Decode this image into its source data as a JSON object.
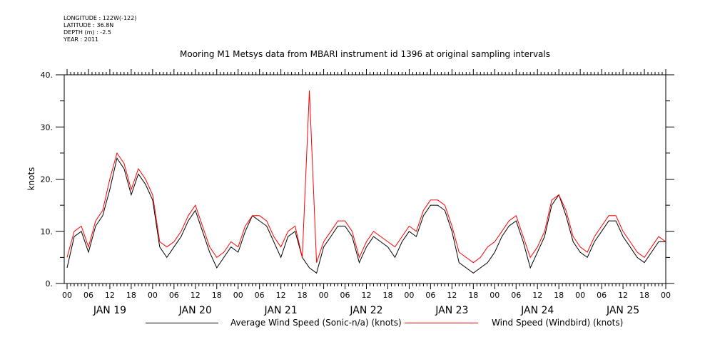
{
  "meta": {
    "lines": [
      "LONGITUDE : 122W(-122)",
      "LATITUDE : 36.8N",
      "DEPTH (m) : -2.5",
      "YEAR : 2011"
    ]
  },
  "chart_data": {
    "type": "line",
    "title": "Mooring M1 Metsys data from MBARI instrument id 1396 at original sampling intervals",
    "ylabel": "knots",
    "ylim": [
      0,
      40
    ],
    "yticks": [
      0,
      10,
      20,
      30,
      40
    ],
    "ytick_labels": [
      "0.",
      "10.",
      "20.",
      "30.",
      "40."
    ],
    "xlim_hours": [
      0,
      168
    ],
    "hour_tick_labels": [
      "00",
      "06",
      "12",
      "18",
      "00",
      "06",
      "12",
      "18",
      "00",
      "06",
      "12",
      "18",
      "00",
      "06",
      "12",
      "18",
      "00",
      "06",
      "12",
      "18",
      "00",
      "06",
      "12",
      "18",
      "00",
      "06",
      "12",
      "18",
      "00"
    ],
    "day_labels": [
      "JAN 19",
      "JAN 20",
      "JAN 21",
      "JAN 22",
      "JAN 23",
      "JAN 24",
      "JAN 25"
    ],
    "grid": false,
    "legend_placement": "bottom",
    "series": [
      {
        "name": "Average Wind Speed (Sonic-n/a) (knots)",
        "color": "#000000",
        "x": [
          0,
          2,
          4,
          6,
          8,
          10,
          12,
          14,
          16,
          18,
          20,
          22,
          24,
          26,
          28,
          30,
          32,
          34,
          36,
          38,
          40,
          42,
          44,
          46,
          48,
          50,
          52,
          54,
          56,
          58,
          60,
          62,
          64,
          66,
          68,
          70,
          72,
          74,
          76,
          78,
          80,
          82,
          84,
          86,
          88,
          90,
          92,
          94,
          96,
          98,
          100,
          102,
          104,
          106,
          108,
          110,
          112,
          114,
          116,
          118,
          120,
          122,
          124,
          126,
          128,
          130,
          132,
          134,
          136,
          138,
          140,
          142,
          144,
          146,
          148,
          150,
          152,
          154,
          156,
          158,
          160,
          162,
          164,
          166,
          168
        ],
        "y": [
          3,
          9,
          10,
          6,
          11,
          13,
          18,
          24,
          22,
          17,
          21,
          19,
          16,
          7,
          5,
          7,
          9,
          12,
          14,
          10,
          6,
          3,
          5,
          7,
          6,
          10,
          13,
          12,
          11,
          8,
          5,
          9,
          10,
          5,
          3,
          2,
          7,
          9,
          11,
          11,
          9,
          4,
          7,
          9,
          8,
          7,
          5,
          8,
          10,
          9,
          13,
          15,
          15,
          14,
          10,
          4,
          3,
          2,
          3,
          4,
          6,
          9,
          11,
          12,
          8,
          3,
          6,
          9,
          15,
          17,
          13,
          8,
          6,
          5,
          8,
          10,
          12,
          12,
          9,
          7,
          5,
          4,
          6,
          8,
          8
        ]
      },
      {
        "name": "Wind Speed (Windbird) (knots)",
        "color": "#ff0000",
        "x": [
          0,
          2,
          4,
          6,
          8,
          10,
          12,
          14,
          16,
          18,
          20,
          22,
          24,
          26,
          28,
          30,
          32,
          34,
          36,
          38,
          40,
          42,
          44,
          46,
          48,
          50,
          52,
          54,
          56,
          58,
          60,
          62,
          64,
          66,
          68,
          70,
          72,
          74,
          76,
          78,
          80,
          82,
          84,
          86,
          88,
          90,
          92,
          94,
          96,
          98,
          100,
          102,
          104,
          106,
          108,
          110,
          112,
          114,
          116,
          118,
          120,
          122,
          124,
          126,
          128,
          130,
          132,
          134,
          136,
          138,
          140,
          142,
          144,
          146,
          148,
          150,
          152,
          154,
          156,
          158,
          160,
          162,
          164,
          166,
          168
        ],
        "y": [
          5,
          10,
          11,
          7,
          12,
          14,
          20,
          25,
          23,
          18,
          22,
          20,
          17,
          8,
          7,
          8,
          10,
          13,
          15,
          11,
          7,
          5,
          6,
          8,
          7,
          11,
          13,
          13,
          12,
          9,
          7,
          10,
          11,
          5,
          37,
          4,
          8,
          10,
          12,
          12,
          10,
          5,
          8,
          10,
          9,
          8,
          7,
          9,
          11,
          10,
          14,
          16,
          16,
          15,
          11,
          6,
          5,
          4,
          5,
          7,
          8,
          10,
          12,
          13,
          9,
          5,
          7,
          10,
          16,
          17,
          14,
          9,
          7,
          6,
          9,
          11,
          13,
          13,
          10,
          8,
          6,
          5,
          7,
          9,
          8
        ]
      }
    ]
  }
}
